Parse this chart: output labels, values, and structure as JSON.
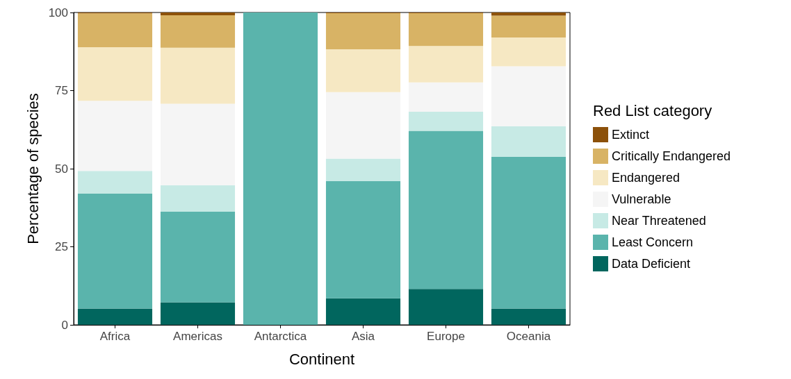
{
  "chart_data": {
    "type": "bar",
    "stacked": true,
    "xlabel": "Continent",
    "ylabel": "Percentage of species",
    "legend_title": "Red List category",
    "legend": "right",
    "grid": false,
    "categories": [
      "Africa",
      "Americas",
      "Antarctica",
      "Asia",
      "Europe",
      "Oceania"
    ],
    "ylim": [
      0,
      100
    ],
    "yticks": [
      0,
      25,
      50,
      75,
      100
    ],
    "series": [
      {
        "name": "Data Deficient",
        "color": "#01665e",
        "values": [
          5.2,
          7.2,
          0,
          8.5,
          11.5,
          5.2
        ]
      },
      {
        "name": "Least Concern",
        "color": "#5ab4ac",
        "values": [
          36.8,
          29,
          100,
          37.5,
          50.6,
          48.6
        ]
      },
      {
        "name": "Near Threatened",
        "color": "#c7eae5",
        "values": [
          7.3,
          8.5,
          0,
          7.2,
          6.1,
          9.8
        ]
      },
      {
        "name": "Vulnerable",
        "color": "#f5f5f5",
        "values": [
          22.4,
          26.1,
          0,
          21.3,
          9.4,
          19.2
        ]
      },
      {
        "name": "Endangered",
        "color": "#f6e8c3",
        "values": [
          17.2,
          17.9,
          0,
          13.7,
          11.7,
          9.2
        ]
      },
      {
        "name": "Critically Endangered",
        "color": "#d8b365",
        "values": [
          10.8,
          10.4,
          0,
          11.6,
          10.5,
          7
        ]
      },
      {
        "name": "Extinct",
        "color": "#8c510a",
        "values": [
          0.3,
          0.9,
          0,
          0.2,
          0.2,
          1
        ]
      }
    ]
  }
}
